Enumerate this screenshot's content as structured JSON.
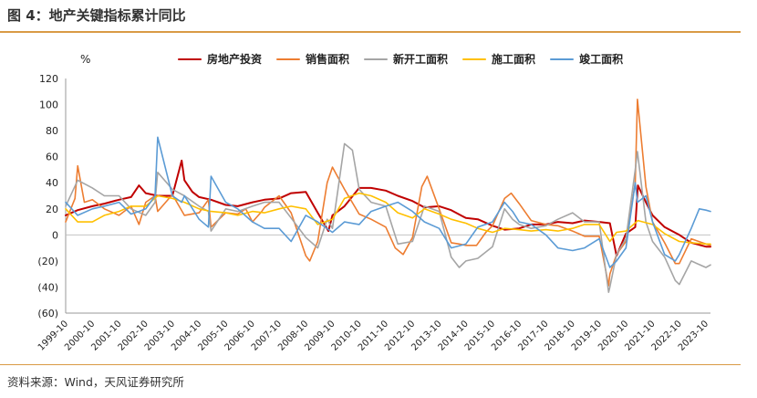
{
  "figure": {
    "title": "图 4：地产关键指标累计同比",
    "source": "资料来源：Wind，天风证券研究所"
  },
  "chart_data": {
    "type": "line",
    "ylabel": "%",
    "ylim": [
      -60,
      120
    ],
    "yticks": [
      -60,
      -40,
      -20,
      0,
      20,
      40,
      60,
      80,
      100,
      120
    ],
    "ytick_labels": [
      "(60)",
      "(40)",
      "(20)",
      "0",
      "20",
      "40",
      "60",
      "80",
      "100",
      "120"
    ],
    "xlim": [
      1999.75,
      2023.92
    ],
    "xtick_values": [
      1999.75,
      2000.75,
      2001.75,
      2002.75,
      2003.75,
      2004.75,
      2005.75,
      2006.75,
      2007.75,
      2008.75,
      2009.75,
      2010.75,
      2011.75,
      2012.75,
      2013.75,
      2014.75,
      2015.75,
      2016.75,
      2017.75,
      2018.75,
      2019.75,
      2020.75,
      2021.75,
      2022.75,
      2023.75
    ],
    "xtick_labels": [
      "1999-10",
      "2000-10",
      "2001-10",
      "2002-10",
      "2003-10",
      "2004-10",
      "2005-10",
      "2006-10",
      "2007-10",
      "2008-10",
      "2009-10",
      "2010-10",
      "2011-10",
      "2012-10",
      "2013-10",
      "2014-10",
      "2015-10",
      "2016-10",
      "2017-10",
      "2018-10",
      "2019-10",
      "2020-10",
      "2021-10",
      "2022-10",
      "2023-10"
    ],
    "grid": false,
    "legend": "top-center",
    "series": [
      {
        "name": "房地产投资",
        "color": "#c00000",
        "x": [
          1999.75,
          2000.2,
          2000.75,
          2001.2,
          2001.75,
          2002.2,
          2002.5,
          2002.75,
          2003.2,
          2003.75,
          2004.1,
          2004.2,
          2004.5,
          2004.75,
          2005.2,
          2005.75,
          2006.2,
          2006.75,
          2007.2,
          2007.75,
          2008.2,
          2008.75,
          2009.2,
          2009.6,
          2009.75,
          2010.2,
          2010.75,
          2011.2,
          2011.75,
          2012.2,
          2012.75,
          2013.2,
          2013.75,
          2014.2,
          2014.75,
          2015.2,
          2015.75,
          2016.2,
          2016.75,
          2017.2,
          2017.75,
          2018.2,
          2018.75,
          2019.2,
          2019.75,
          2020.15,
          2020.4,
          2020.75,
          2021.1,
          2021.2,
          2021.5,
          2021.75,
          2022.2,
          2022.75,
          2023.2,
          2023.75,
          2023.92
        ],
        "y": [
          15,
          19,
          22,
          24,
          27,
          29,
          38,
          32,
          30,
          30,
          57,
          42,
          33,
          29,
          27,
          23,
          22,
          25,
          27,
          28,
          32,
          33,
          17,
          3,
          15,
          22,
          36,
          36,
          34,
          30,
          26,
          21,
          22,
          19,
          13,
          12,
          7,
          4,
          5,
          8,
          8,
          10,
          9,
          11,
          10,
          9,
          -16,
          1,
          6,
          38,
          25,
          15,
          6,
          0,
          -6,
          -9,
          -9
        ]
      },
      {
        "name": "销售面积",
        "color": "#ed7d31",
        "x": [
          1999.75,
          2000.1,
          2000.2,
          2000.45,
          2000.75,
          2001.2,
          2001.75,
          2002.2,
          2002.5,
          2002.75,
          2003.1,
          2003.2,
          2003.75,
          2004.2,
          2004.75,
          2005.1,
          2005.2,
          2005.75,
          2006.2,
          2006.5,
          2006.75,
          2007.1,
          2007.2,
          2007.75,
          2008.2,
          2008.75,
          2008.9,
          2009.2,
          2009.55,
          2009.75,
          2010.2,
          2010.75,
          2011.2,
          2011.75,
          2012.1,
          2012.4,
          2012.75,
          2013.1,
          2013.3,
          2013.75,
          2014.2,
          2014.5,
          2014.75,
          2015.15,
          2015.5,
          2015.75,
          2016.2,
          2016.45,
          2016.75,
          2017.2,
          2017.75,
          2018.2,
          2018.75,
          2019.2,
          2019.75,
          2020.1,
          2020.15,
          2020.4,
          2020.75,
          2021.1,
          2021.18,
          2021.5,
          2021.75,
          2022.2,
          2022.6,
          2022.75,
          2023.2,
          2023.75,
          2023.92
        ],
        "y": [
          10,
          28,
          53,
          25,
          27,
          20,
          15,
          22,
          8,
          25,
          30,
          18,
          31,
          15,
          17,
          27,
          6,
          17,
          16,
          20,
          10,
          18,
          21,
          30,
          17,
          -16,
          -20,
          -5,
          40,
          52,
          35,
          16,
          12,
          6,
          -10,
          -15,
          -2,
          37,
          45,
          20,
          -6,
          -7,
          -8,
          -8,
          2,
          7,
          28,
          32,
          24,
          11,
          8,
          7,
          3,
          -1,
          -1,
          -39,
          -30,
          -15,
          -5,
          40,
          104,
          37,
          10,
          -6,
          -22,
          -22,
          -3,
          -7,
          -8
        ]
      },
      {
        "name": "新开工面积",
        "color": "#a5a5a5",
        "x": [
          1999.75,
          2000.2,
          2000.75,
          2001.2,
          2001.75,
          2002.2,
          2002.75,
          2003.1,
          2003.2,
          2003.75,
          2004.2,
          2004.75,
          2005.1,
          2005.2,
          2005.75,
          2006.2,
          2006.75,
          2007.2,
          2007.75,
          2008.2,
          2008.75,
          2009.2,
          2009.55,
          2009.75,
          2010.2,
          2010.5,
          2010.75,
          2011.2,
          2011.75,
          2012.2,
          2012.75,
          2013.2,
          2013.75,
          2014.2,
          2014.5,
          2014.75,
          2015.2,
          2015.75,
          2016.2,
          2016.5,
          2016.75,
          2017.2,
          2017.75,
          2018.2,
          2018.75,
          2019.2,
          2019.75,
          2020.1,
          2020.15,
          2020.4,
          2020.75,
          2021.1,
          2021.18,
          2021.5,
          2021.75,
          2022.2,
          2022.6,
          2022.75,
          2023.2,
          2023.75,
          2023.92
        ],
        "y": [
          22,
          42,
          36,
          30,
          30,
          20,
          15,
          25,
          48,
          35,
          30,
          22,
          18,
          3,
          20,
          18,
          22,
          25,
          25,
          13,
          -2,
          -10,
          12,
          5,
          70,
          65,
          35,
          25,
          22,
          -7,
          -5,
          22,
          18,
          -17,
          -25,
          -20,
          -18,
          -9,
          20,
          12,
          8,
          5,
          7,
          12,
          17,
          10,
          10,
          -44,
          -40,
          -15,
          -3,
          50,
          64,
          10,
          -5,
          -17,
          -35,
          -38,
          -20,
          -25,
          -23
        ]
      },
      {
        "name": "施工面积",
        "color": "#ffc000",
        "x": [
          1999.75,
          2000.2,
          2000.75,
          2001.2,
          2001.75,
          2002.2,
          2002.75,
          2003.2,
          2003.75,
          2004.2,
          2004.75,
          2005.2,
          2005.75,
          2006.2,
          2006.75,
          2007.2,
          2007.75,
          2008.2,
          2008.75,
          2009.2,
          2009.75,
          2010.2,
          2010.75,
          2011.2,
          2011.75,
          2012.2,
          2012.75,
          2013.2,
          2013.75,
          2014.2,
          2014.75,
          2015.2,
          2015.75,
          2016.2,
          2016.75,
          2017.2,
          2017.75,
          2018.2,
          2018.75,
          2019.2,
          2019.75,
          2020.15,
          2020.4,
          2020.75,
          2021.2,
          2021.75,
          2022.2,
          2022.75,
          2023.2,
          2023.75,
          2023.92
        ],
        "y": [
          20,
          10,
          10,
          15,
          18,
          22,
          22,
          30,
          28,
          25,
          20,
          18,
          17,
          15,
          18,
          17,
          20,
          22,
          20,
          8,
          12,
          28,
          32,
          30,
          25,
          17,
          13,
          20,
          16,
          12,
          9,
          5,
          2,
          5,
          4,
          3,
          4,
          3,
          5,
          8,
          8,
          -5,
          2,
          3,
          11,
          8,
          1,
          -5,
          -6,
          -7,
          -7
        ]
      },
      {
        "name": "竣工面积",
        "color": "#5b9bd5",
        "x": [
          1999.75,
          2000.2,
          2000.75,
          2001.2,
          2001.75,
          2002.2,
          2002.5,
          2002.75,
          2003.1,
          2003.2,
          2003.75,
          2004.1,
          2004.2,
          2004.75,
          2005.1,
          2005.2,
          2005.75,
          2006.2,
          2006.75,
          2007.2,
          2007.75,
          2008.2,
          2008.75,
          2009.2,
          2009.75,
          2010.2,
          2010.75,
          2011.2,
          2011.75,
          2012.2,
          2012.75,
          2013.2,
          2013.75,
          2014.2,
          2014.75,
          2015.2,
          2015.75,
          2016.2,
          2016.5,
          2016.75,
          2017.2,
          2017.75,
          2018.2,
          2018.75,
          2019.2,
          2019.75,
          2020.15,
          2020.4,
          2020.75,
          2021.1,
          2021.18,
          2021.5,
          2021.75,
          2022.2,
          2022.6,
          2022.75,
          2023.2,
          2023.5,
          2023.75,
          2023.92
        ],
        "y": [
          25,
          15,
          20,
          22,
          25,
          16,
          18,
          20,
          30,
          75,
          30,
          25,
          30,
          12,
          6,
          45,
          25,
          20,
          10,
          5,
          5,
          -5,
          15,
          10,
          2,
          10,
          8,
          18,
          22,
          25,
          18,
          10,
          5,
          -10,
          -7,
          6,
          10,
          25,
          18,
          10,
          8,
          0,
          -10,
          -12,
          -10,
          -3,
          -25,
          -20,
          -10,
          40,
          25,
          30,
          10,
          -15,
          -20,
          -15,
          5,
          20,
          19,
          18
        ]
      }
    ]
  }
}
